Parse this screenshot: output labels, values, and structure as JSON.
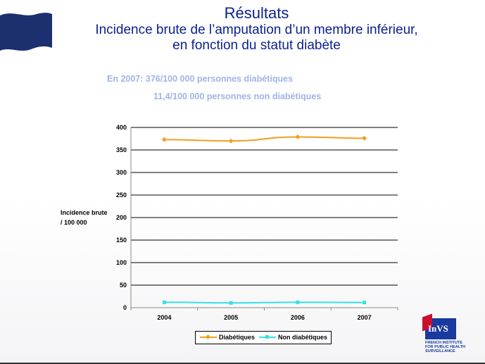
{
  "slide": {
    "title": "Résultats",
    "subtitle_line1": "Incidence brute de l’amputation d’un membre inférieur,",
    "subtitle_line2": "en fonction du statut diabète",
    "note_line1": "En 2007: 376/100 000 personnes diabétiques",
    "note_line2": "11,4/100 000 personnes non diabétiques"
  },
  "logo": {
    "name": "InVS",
    "text_line1": "FRENCH INSTITUTE",
    "text_line2": "FOR PUBLIC HEALTH",
    "text_line3": "SURVEILLANCE"
  },
  "chart_data": {
    "type": "line",
    "title": "",
    "xlabel": "",
    "ylabel_line1": "Incidence brute",
    "ylabel_line2": "/ 100 000",
    "categories": [
      "2004",
      "2005",
      "2006",
      "2007"
    ],
    "ylim": [
      0,
      400
    ],
    "yticks": [
      0,
      50,
      100,
      150,
      200,
      250,
      300,
      350,
      400
    ],
    "grid": true,
    "legend_position": "bottom",
    "series": [
      {
        "name": "Diabétiques",
        "values": [
          373,
          370,
          379,
          376
        ],
        "color": "#f0a020",
        "marker": "diamond"
      },
      {
        "name": "Non diabétiques",
        "values": [
          12,
          10.5,
          12,
          11.4
        ],
        "color": "#33e0e8",
        "marker": "square"
      }
    ]
  }
}
